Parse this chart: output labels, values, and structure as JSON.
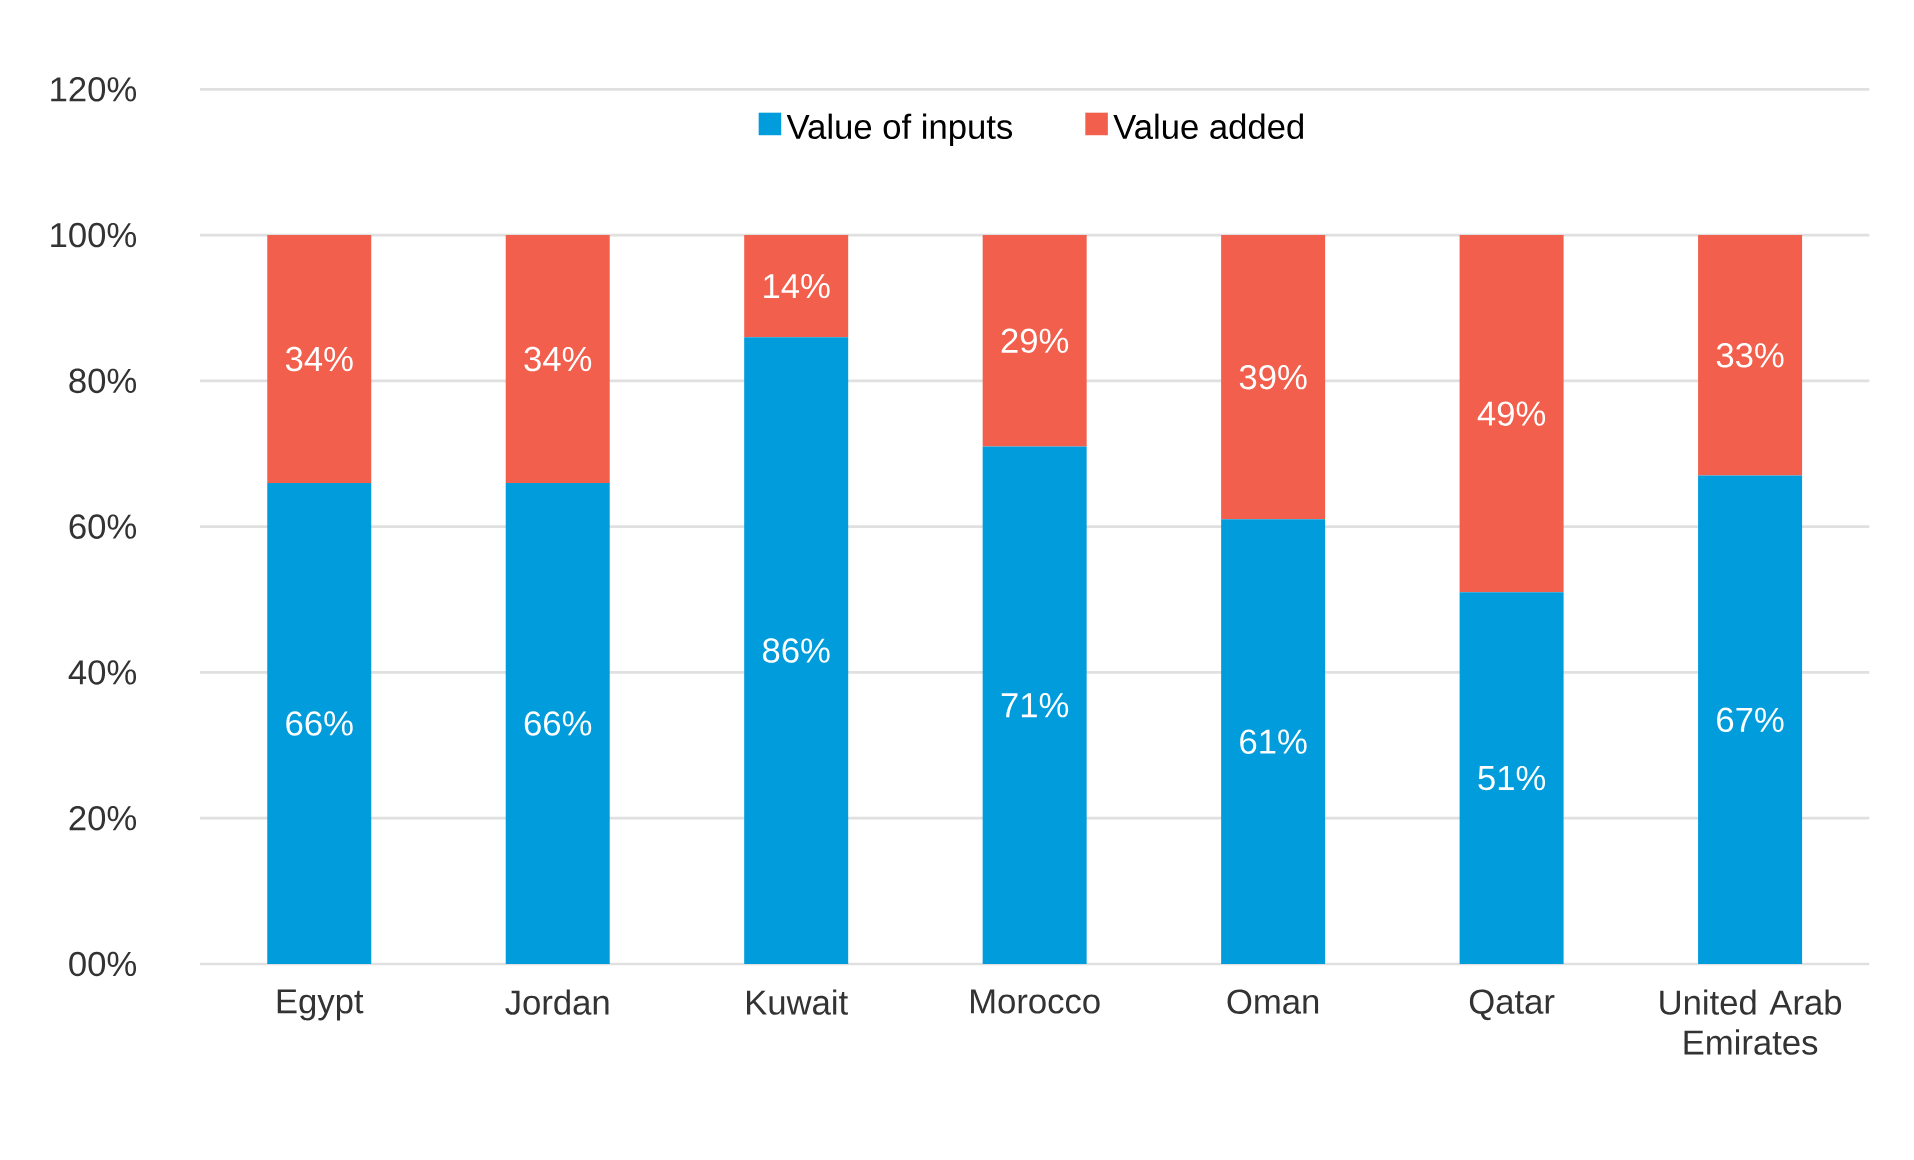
{
  "chart_data": {
    "type": "bar",
    "stacked": true,
    "categories": [
      "Egypt",
      "Jordan",
      "Kuwait",
      "Morocco",
      "Oman",
      "Qatar",
      "United Arab Emirates"
    ],
    "series": [
      {
        "name": "Value of inputs",
        "color": "#009cdc",
        "values": [
          66,
          66,
          86,
          71,
          61,
          51,
          67
        ],
        "value_labels": [
          "66%",
          "66%",
          "86%",
          "71%",
          "61%",
          "51%",
          "67%"
        ]
      },
      {
        "name": "Value added",
        "color": "#f25f4c",
        "values": [
          34,
          34,
          14,
          29,
          39,
          49,
          33
        ],
        "value_labels": [
          "34%",
          "34%",
          "14%",
          "29%",
          "39%",
          "49%",
          "33%"
        ]
      }
    ],
    "ylim": [
      0,
      120
    ],
    "yticks": [
      {
        "value": 0,
        "label": "00%"
      },
      {
        "value": 20,
        "label": "20%"
      },
      {
        "value": 40,
        "label": "40%"
      },
      {
        "value": 60,
        "label": "60%"
      },
      {
        "value": 80,
        "label": "80%"
      },
      {
        "value": 100,
        "label": "100%"
      },
      {
        "value": 120,
        "label": "120%"
      }
    ],
    "grid": "y",
    "legend": "top"
  }
}
